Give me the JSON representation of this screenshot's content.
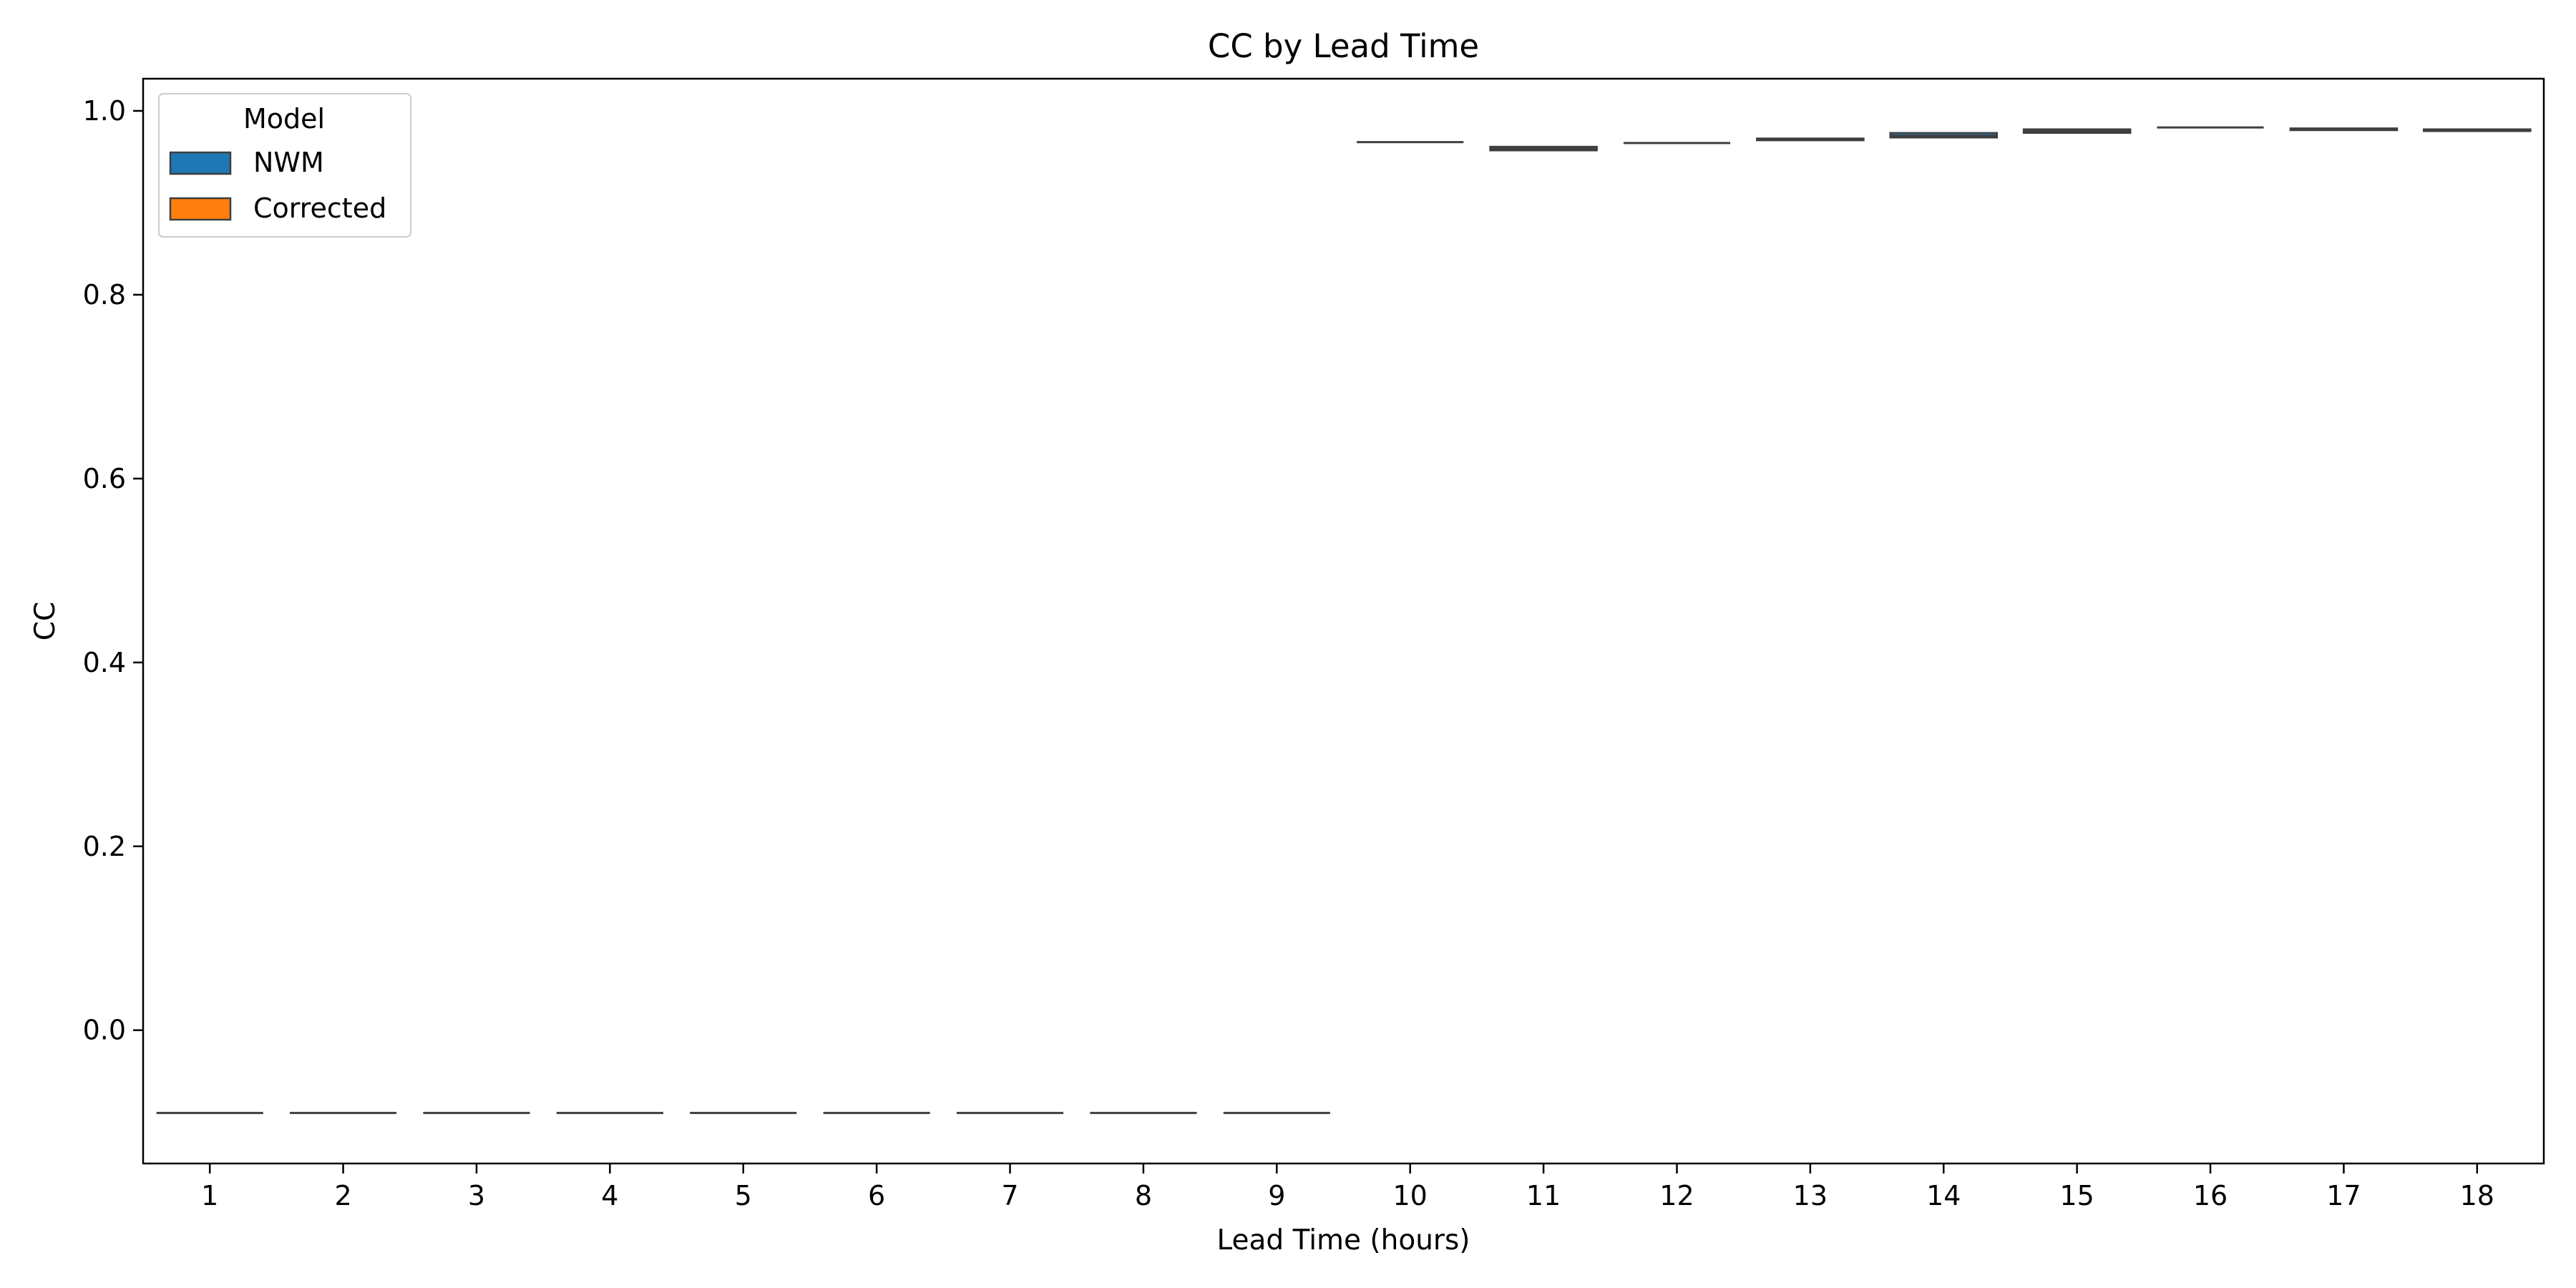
{
  "chart_data": {
    "type": "box",
    "title": "CC by Lead Time",
    "xlabel": "Lead Time (hours)",
    "ylabel": "CC",
    "categories": [
      "1",
      "2",
      "3",
      "4",
      "5",
      "6",
      "7",
      "8",
      "9",
      "10",
      "11",
      "12",
      "13",
      "14",
      "15",
      "16",
      "17",
      "18"
    ],
    "y_ticks": [
      "0.0",
      "0.2",
      "0.4",
      "0.6",
      "0.8",
      "1.0"
    ],
    "ylim": [
      -0.145,
      1.035
    ],
    "grid": false,
    "legend": {
      "title": "Model",
      "placement": "top-left",
      "entries": [
        {
          "name": "NWM",
          "color": "#1f77b4"
        },
        {
          "name": "Corrected",
          "color": "#ff7f0e"
        }
      ]
    },
    "series": [
      {
        "name": "NWM",
        "color": "#1f77b4",
        "boxes": [
          {
            "q1": -0.09,
            "median": -0.09,
            "q3": -0.09
          },
          {
            "q1": -0.09,
            "median": -0.09,
            "q3": -0.09
          },
          {
            "q1": -0.09,
            "median": -0.09,
            "q3": -0.09
          },
          {
            "q1": -0.09,
            "median": -0.09,
            "q3": -0.09
          },
          {
            "q1": -0.09,
            "median": -0.09,
            "q3": -0.09
          },
          {
            "q1": -0.09,
            "median": -0.09,
            "q3": -0.09
          },
          {
            "q1": -0.09,
            "median": -0.09,
            "q3": -0.09
          },
          {
            "q1": -0.09,
            "median": -0.09,
            "q3": -0.09
          },
          {
            "q1": -0.09,
            "median": -0.09,
            "q3": -0.09
          },
          {
            "q1": 0.966,
            "median": 0.966,
            "q3": 0.966
          },
          {
            "q1": 0.957,
            "median": 0.959,
            "q3": 0.961
          },
          {
            "q1": 0.965,
            "median": 0.965,
            "q3": 0.965
          },
          {
            "q1": 0.968,
            "median": 0.969,
            "q3": 0.97
          },
          {
            "q1": 0.971,
            "median": 0.973,
            "q3": 0.976
          },
          {
            "q1": 0.976,
            "median": 0.978,
            "q3": 0.98
          },
          {
            "q1": 0.982,
            "median": 0.982,
            "q3": 0.982
          },
          {
            "q1": 0.979,
            "median": 0.98,
            "q3": 0.981
          },
          {
            "q1": 0.978,
            "median": 0.979,
            "q3": 0.98
          }
        ]
      }
    ]
  }
}
